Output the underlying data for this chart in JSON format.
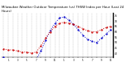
{
  "title": "Milwaukee Weather Outdoor Temperature (vs) THSW Index per Hour (Last 24 Hours)",
  "title_fontsize": 2.8,
  "bg_color": "#ffffff",
  "plot_bg": "#ffffff",
  "grid_color": "#888888",
  "ytick_labels": [
    "75",
    "70",
    "65",
    "60",
    "55",
    "50",
    "45",
    "40"
  ],
  "ytick_values": [
    75,
    70,
    65,
    60,
    55,
    50,
    45,
    40
  ],
  "ylim": [
    36,
    78
  ],
  "hours": [
    0,
    1,
    2,
    3,
    4,
    5,
    6,
    7,
    8,
    9,
    10,
    11,
    12,
    13,
    14,
    15,
    16,
    17,
    18,
    19,
    20,
    21,
    22,
    23
  ],
  "hour_labels": [
    "",
    "1",
    "",
    "3",
    "",
    "5",
    "",
    "7",
    "",
    "9",
    "",
    "11",
    "",
    "1",
    "",
    "3",
    "",
    "5",
    "",
    "7",
    "",
    "9",
    "",
    "11"
  ],
  "temp_red": [
    44,
    43,
    43,
    42,
    41,
    41,
    40,
    41,
    47,
    54,
    60,
    65,
    68,
    69,
    68,
    67,
    65,
    63,
    61,
    60,
    60,
    62,
    64,
    65
  ],
  "thsw_blue": [
    36,
    35,
    35,
    35,
    34,
    34,
    34,
    34,
    42,
    52,
    61,
    68,
    73,
    74,
    71,
    67,
    62,
    57,
    53,
    51,
    50,
    54,
    58,
    62
  ],
  "red_color": "#cc0000",
  "blue_color": "#0000cc",
  "line_width": 0.7,
  "marker_size": 1.2
}
